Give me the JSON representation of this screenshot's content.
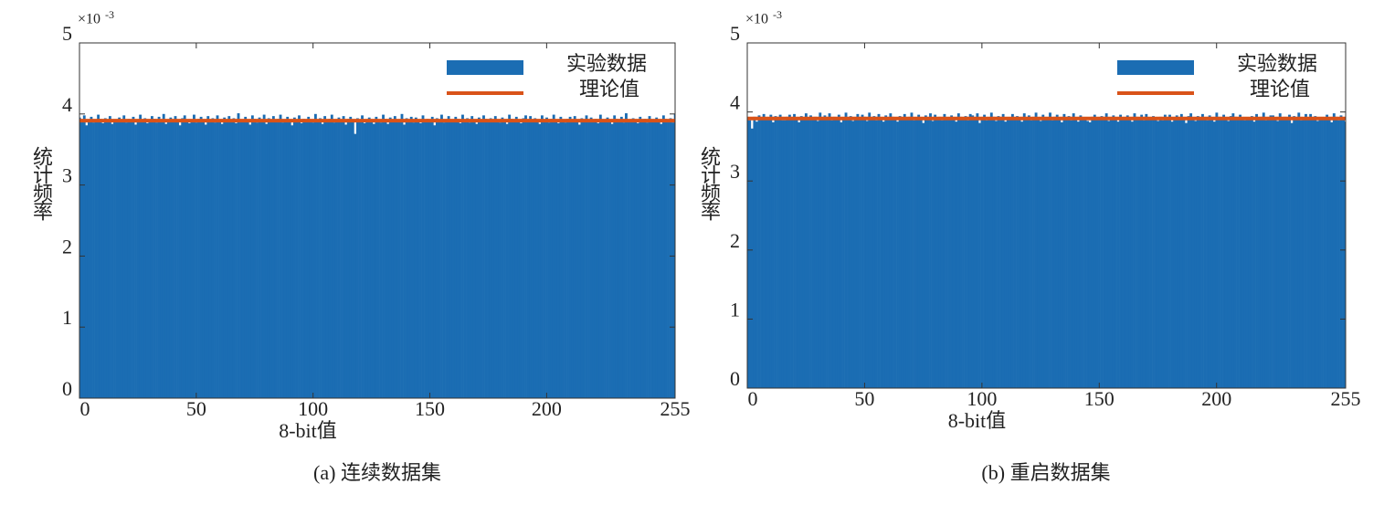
{
  "chart_data": [
    {
      "type": "bar",
      "caption": "(a) 连续数据集",
      "xlabel": "8-bit值",
      "ylabel": "统计频率",
      "y_multiplier": "×10",
      "y_multiplier_exponent": "-3",
      "xlim": [
        0,
        255
      ],
      "xticks": [
        0,
        50,
        100,
        150,
        200,
        255
      ],
      "ylim": [
        0,
        5
      ],
      "yticks": [
        0,
        1,
        2,
        3,
        4,
        5
      ],
      "legend": "upper right",
      "x": [
        0,
        1,
        2,
        3,
        4,
        5,
        6,
        7,
        8,
        9,
        10,
        11,
        12,
        13,
        14,
        15,
        16,
        17,
        18,
        19,
        20,
        21,
        22,
        23,
        24,
        25,
        26,
        27,
        28,
        29,
        30,
        31,
        32,
        33,
        34,
        35,
        36,
        37,
        38,
        39,
        40,
        41,
        42,
        43,
        44,
        45,
        46,
        47,
        48,
        49,
        50,
        51,
        52,
        53,
        54,
        55,
        56,
        57,
        58,
        59,
        60,
        61,
        62,
        63,
        64,
        65,
        66,
        67,
        68,
        69,
        70,
        71,
        72,
        73,
        74,
        75,
        76,
        77,
        78,
        79,
        80,
        81,
        82,
        83,
        84,
        85,
        86,
        87,
        88,
        89,
        90,
        91,
        92,
        93,
        94,
        95,
        96,
        97,
        98,
        99,
        100,
        101,
        102,
        103,
        104,
        105,
        106,
        107,
        108,
        109,
        110,
        111,
        112,
        113,
        114,
        115,
        116,
        117,
        118,
        119,
        120,
        121,
        122,
        123,
        124,
        125,
        126,
        127,
        128,
        129,
        130,
        131,
        132,
        133,
        134,
        135,
        136,
        137,
        138,
        139,
        140,
        141,
        142,
        143,
        144,
        145,
        146,
        147,
        148,
        149,
        150,
        151,
        152,
        153,
        154,
        155,
        156,
        157,
        158,
        159,
        160,
        161,
        162,
        163,
        164,
        165,
        166,
        167,
        168,
        169,
        170,
        171,
        172,
        173,
        174,
        175,
        176,
        177,
        178,
        179,
        180,
        181,
        182,
        183,
        184,
        185,
        186,
        187,
        188,
        189,
        190,
        191,
        192,
        193,
        194,
        195,
        196,
        197,
        198,
        199,
        200,
        201,
        202,
        203,
        204,
        205,
        206,
        207,
        208,
        209,
        210,
        211,
        212,
        213,
        214,
        215,
        216,
        217,
        218,
        219,
        220,
        221,
        222,
        223,
        224,
        225,
        226,
        227,
        228,
        229,
        230,
        231,
        232,
        233,
        234,
        235,
        236,
        237,
        238,
        239,
        240,
        241,
        242,
        243,
        244,
        245,
        246,
        247,
        248,
        249,
        250,
        251,
        252,
        253,
        254,
        255
      ],
      "series": [
        {
          "name": "实验数据",
          "color": "#1b6db3",
          "values": [
            3.95,
            3.89,
            3.98,
            3.84,
            3.92,
            3.96,
            3.88,
            3.91,
            3.99,
            3.93,
            3.87,
            3.94,
            3.9,
            3.97,
            3.86,
            3.92,
            3.89,
            3.95,
            3.91,
            3.98,
            3.88,
            3.93,
            3.9,
            3.96,
            3.85,
            3.92,
            3.99,
            3.89,
            3.94,
            3.87,
            3.91,
            3.97,
            3.93,
            3.88,
            3.96,
            3.9,
            4.0,
            3.86,
            3.92,
            3.95,
            3.89,
            3.97,
            3.91,
            3.84,
            3.94,
            3.98,
            3.9,
            3.87,
            3.92,
            3.99,
            3.88,
            3.93,
            3.96,
            3.91,
            3.85,
            3.97,
            3.9,
            3.94,
            3.88,
            3.98,
            3.92,
            3.86,
            3.95,
            3.91,
            3.97,
            3.9,
            3.94,
            3.87,
            4.01,
            3.92,
            3.89,
            3.96,
            3.91,
            3.85,
            3.98,
            3.93,
            3.88,
            3.95,
            3.9,
            3.99,
            3.86,
            3.94,
            3.91,
            3.97,
            3.89,
            3.93,
            3.99,
            3.88,
            3.92,
            3.96,
            3.9,
            3.84,
            3.95,
            3.91,
            3.98,
            3.87,
            3.93,
            3.89,
            3.96,
            3.92,
            3.88,
            4.0,
            3.91,
            3.94,
            3.86,
            3.97,
            3.9,
            3.93,
            3.99,
            3.88,
            3.92,
            3.95,
            3.9,
            3.97,
            3.85,
            3.93,
            3.96,
            3.89,
            3.72,
            3.94,
            3.91,
            3.98,
            3.87,
            3.92,
            3.95,
            3.9,
            3.86,
            3.96,
            3.91,
            3.88,
            3.99,
            3.93,
            3.86,
            3.95,
            3.9,
            3.97,
            3.92,
            3.89,
            4.0,
            3.85,
            3.94,
            3.91,
            3.96,
            3.88,
            3.95,
            3.92,
            3.87,
            3.98,
            3.9,
            3.93,
            3.89,
            3.96,
            3.84,
            3.94,
            3.91,
            3.99,
            3.88,
            3.92,
            3.97,
            3.9,
            3.89,
            3.96,
            3.93,
            3.87,
            3.99,
            3.91,
            3.94,
            3.88,
            3.97,
            3.92,
            3.86,
            3.95,
            3.9,
            3.98,
            3.93,
            3.89,
            3.94,
            3.9,
            3.97,
            3.92,
            3.88,
            3.95,
            3.91,
            3.86,
            3.99,
            3.93,
            3.89,
            3.96,
            3.92,
            3.87,
            3.94,
            3.98,
            3.91,
            3.97,
            3.89,
            3.94,
            3.92,
            3.86,
            3.98,
            3.9,
            3.95,
            3.88,
            3.93,
            3.99,
            3.91,
            3.87,
            3.96,
            3.92,
            3.88,
            3.93,
            3.96,
            3.9,
            3.97,
            3.91,
            3.85,
            3.94,
            3.92,
            3.98,
            3.89,
            3.95,
            3.9,
            3.93,
            3.87,
            3.99,
            3.92,
            3.89,
            3.95,
            3.91,
            3.86,
            3.98,
            3.93,
            3.9,
            3.96,
            3.88,
            4.01,
            3.92,
            3.89,
            3.94,
            3.91,
            3.87,
            3.96,
            3.9,
            3.93,
            3.88,
            3.97,
            3.92,
            3.89,
            3.95,
            3.91,
            3.86,
            3.98,
            3.93,
            3.9,
            3.94,
            3.88,
            4.0
          ]
        },
        {
          "name": "理论值",
          "color": "#d95319",
          "x": [
            0,
            255
          ],
          "values": [
            3.906,
            3.906
          ]
        }
      ]
    },
    {
      "type": "bar",
      "caption": "(b) 重启数据集",
      "xlabel": "8-bit值",
      "ylabel": "统计频率",
      "y_multiplier": "×10",
      "y_multiplier_exponent": "-3",
      "xlim": [
        0,
        255
      ],
      "xticks": [
        0,
        50,
        100,
        150,
        200,
        255
      ],
      "ylim": [
        0,
        5
      ],
      "yticks": [
        0,
        1,
        2,
        3,
        4,
        5
      ],
      "legend": "upper right",
      "x": [
        0,
        1,
        2,
        3,
        4,
        5,
        6,
        7,
        8,
        9,
        10,
        11,
        12,
        13,
        14,
        15,
        16,
        17,
        18,
        19,
        20,
        21,
        22,
        23,
        24,
        25,
        26,
        27,
        28,
        29,
        30,
        31,
        32,
        33,
        34,
        35,
        36,
        37,
        38,
        39,
        40,
        41,
        42,
        43,
        44,
        45,
        46,
        47,
        48,
        49,
        50,
        51,
        52,
        53,
        54,
        55,
        56,
        57,
        58,
        59,
        60,
        61,
        62,
        63,
        64,
        65,
        66,
        67,
        68,
        69,
        70,
        71,
        72,
        73,
        74,
        75,
        76,
        77,
        78,
        79,
        80,
        81,
        82,
        83,
        84,
        85,
        86,
        87,
        88,
        89,
        90,
        91,
        92,
        93,
        94,
        95,
        96,
        97,
        98,
        99,
        100,
        101,
        102,
        103,
        104,
        105,
        106,
        107,
        108,
        109,
        110,
        111,
        112,
        113,
        114,
        115,
        116,
        117,
        118,
        119,
        120,
        121,
        122,
        123,
        124,
        125,
        126,
        127,
        128,
        129,
        130,
        131,
        132,
        133,
        134,
        135,
        136,
        137,
        138,
        139,
        140,
        141,
        142,
        143,
        144,
        145,
        146,
        147,
        148,
        149,
        150,
        151,
        152,
        153,
        154,
        155,
        156,
        157,
        158,
        159,
        160,
        161,
        162,
        163,
        164,
        165,
        166,
        167,
        168,
        169,
        170,
        171,
        172,
        173,
        174,
        175,
        176,
        177,
        178,
        179,
        180,
        181,
        182,
        183,
        184,
        185,
        186,
        187,
        188,
        189,
        190,
        191,
        192,
        193,
        194,
        195,
        196,
        197,
        198,
        199,
        200,
        201,
        202,
        203,
        204,
        205,
        206,
        207,
        208,
        209,
        210,
        211,
        212,
        213,
        214,
        215,
        216,
        217,
        218,
        219,
        220,
        221,
        222,
        223,
        224,
        225,
        226,
        227,
        228,
        229,
        230,
        231,
        232,
        233,
        234,
        235,
        236,
        237,
        238,
        239,
        240,
        241,
        242,
        243,
        244,
        245,
        246,
        247,
        248,
        249,
        250,
        251,
        252,
        253,
        254,
        255
      ],
      "series": [
        {
          "name": "实验数据",
          "color": "#1b6db3",
          "values": [
            3.91,
            3.88,
            3.76,
            3.93,
            3.86,
            3.95,
            3.9,
            3.97,
            3.92,
            3.89,
            3.96,
            3.85,
            3.94,
            3.91,
            3.96,
            3.88,
            3.88,
            3.93,
            3.96,
            3.9,
            3.97,
            3.91,
            3.85,
            3.94,
            3.92,
            3.98,
            3.89,
            3.95,
            3.9,
            3.93,
            3.87,
            3.99,
            3.89,
            3.95,
            3.91,
            3.98,
            3.88,
            3.93,
            3.9,
            3.96,
            3.85,
            3.92,
            3.99,
            3.89,
            3.94,
            3.87,
            3.91,
            3.97,
            3.89,
            3.96,
            3.93,
            3.87,
            3.99,
            3.91,
            3.94,
            3.88,
            3.97,
            3.92,
            3.86,
            3.95,
            3.9,
            3.98,
            3.93,
            3.89,
            3.86,
            3.94,
            3.91,
            3.97,
            3.89,
            3.93,
            3.99,
            3.88,
            3.92,
            3.96,
            3.9,
            3.84,
            3.95,
            3.91,
            3.98,
            3.87,
            3.96,
            3.9,
            3.93,
            3.88,
            3.97,
            3.92,
            3.89,
            3.95,
            3.91,
            3.86,
            3.98,
            3.93,
            3.9,
            3.94,
            3.88,
            3.97,
            3.95,
            3.89,
            3.98,
            3.84,
            3.92,
            3.96,
            3.88,
            3.91,
            3.99,
            3.93,
            3.87,
            3.94,
            3.9,
            3.97,
            3.86,
            3.92,
            3.91,
            3.97,
            3.89,
            3.94,
            3.92,
            3.86,
            3.98,
            3.9,
            3.95,
            3.88,
            3.93,
            3.99,
            3.91,
            3.87,
            3.96,
            3.92,
            3.92,
            3.99,
            3.88,
            3.93,
            3.96,
            3.91,
            3.85,
            3.97,
            3.9,
            3.94,
            3.88,
            3.98,
            3.92,
            3.86,
            3.95,
            3.91,
            3.9,
            3.87,
            3.85,
            3.93,
            3.96,
            3.89,
            3.9,
            3.94,
            3.91,
            3.98,
            3.87,
            3.92,
            3.95,
            3.9,
            3.86,
            3.96,
            3.92,
            3.89,
            3.95,
            3.91,
            3.86,
            3.98,
            3.93,
            3.9,
            3.96,
            3.88,
            3.97,
            3.92,
            3.89,
            3.94,
            3.91,
            3.87,
            3.93,
            3.88,
            3.96,
            3.9,
            3.96,
            3.86,
            3.92,
            3.95,
            3.89,
            3.97,
            3.91,
            3.84,
            3.94,
            3.98,
            3.9,
            3.87,
            3.94,
            3.9,
            3.97,
            3.92,
            3.88,
            3.95,
            3.91,
            3.86,
            3.99,
            3.93,
            3.89,
            3.96,
            3.92,
            3.87,
            3.94,
            3.98,
            3.93,
            3.89,
            3.96,
            3.92,
            3.88,
            3.92,
            3.91,
            3.94,
            3.86,
            3.97,
            3.9,
            3.93,
            3.99,
            3.88,
            3.92,
            3.95,
            3.95,
            3.92,
            3.87,
            3.98,
            3.9,
            3.93,
            3.89,
            3.96,
            3.84,
            3.94,
            3.91,
            3.99,
            3.88,
            3.92,
            3.97,
            3.9,
            3.97,
            3.9,
            3.94,
            3.87,
            3.92,
            3.92,
            3.89,
            3.96,
            3.91,
            3.85,
            3.98,
            3.93,
            3.88,
            3.95,
            3.9,
            3.86
          ]
        },
        {
          "name": "理论值",
          "color": "#d95319",
          "x": [
            0,
            255
          ],
          "values": [
            3.906,
            3.906
          ]
        }
      ]
    }
  ]
}
